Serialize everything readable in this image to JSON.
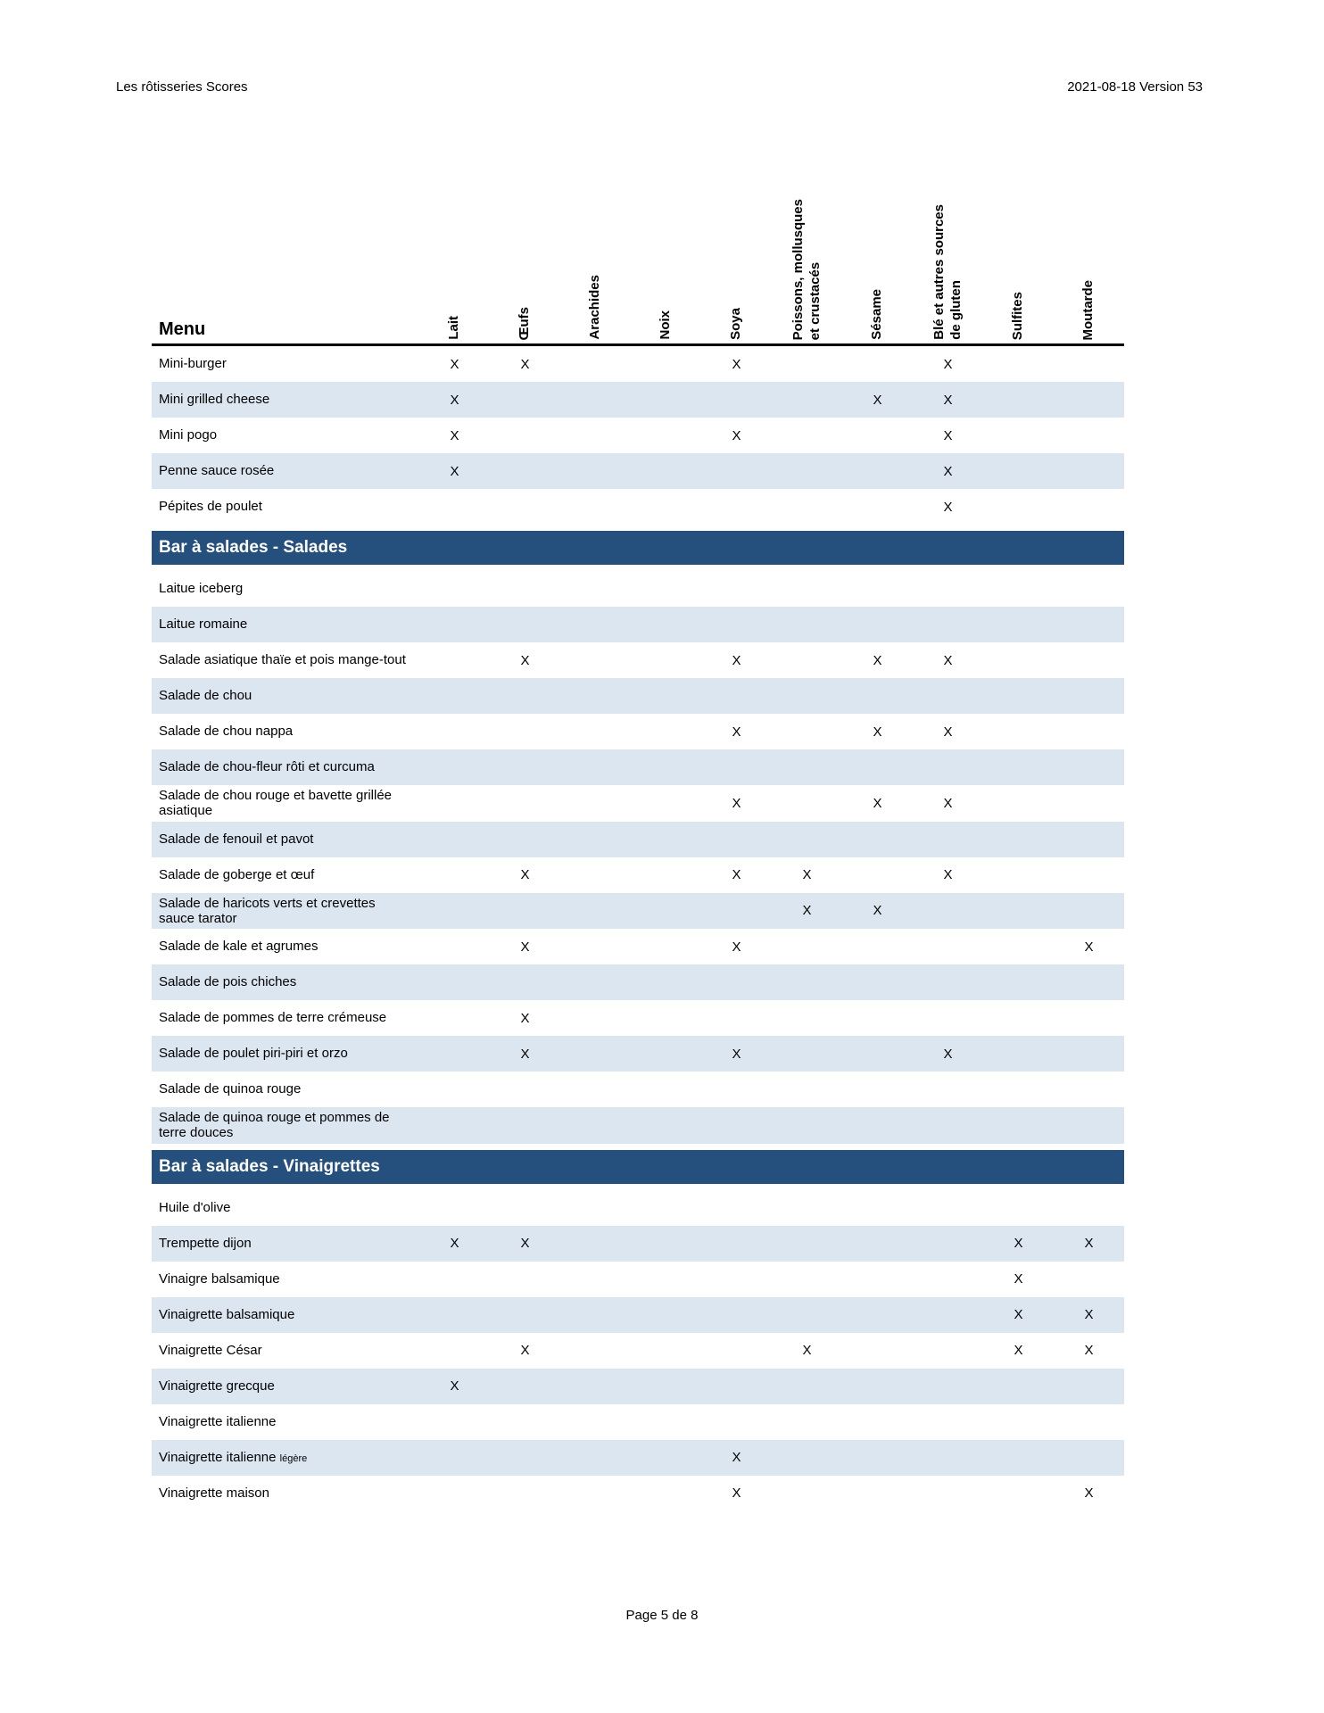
{
  "page_header": {
    "left": "Les rôtisseries Scores",
    "right": "2021-08-18 Version 53"
  },
  "table": {
    "menu_label": "Menu",
    "mark_symbol": "X",
    "columns": [
      "Lait",
      "Œufs",
      "Arachides",
      "Noix",
      "Soya",
      "Poissons, mollusques\net crustacés",
      "Sésame",
      "Blé et autres sources\nde gluten",
      "Sulfites",
      "Moutarde"
    ],
    "rows": [
      {
        "type": "item",
        "label": "Mini-burger",
        "marks": [
          0,
          1,
          4,
          7
        ]
      },
      {
        "type": "item",
        "label": "Mini grilled cheese",
        "marks": [
          0,
          6,
          7
        ]
      },
      {
        "type": "item",
        "label": "Mini pogo",
        "marks": [
          0,
          4,
          7
        ]
      },
      {
        "type": "item",
        "label": "Penne sauce rosée",
        "marks": [
          0,
          7
        ]
      },
      {
        "type": "item",
        "label": "Pépites de poulet",
        "marks": [
          7
        ]
      },
      {
        "type": "section",
        "label": "Bar à salades - Salades"
      },
      {
        "type": "item",
        "label": "Laitue iceberg",
        "marks": []
      },
      {
        "type": "item",
        "label": "Laitue romaine",
        "marks": []
      },
      {
        "type": "item",
        "label": "Salade asiatique thaïe et pois mange-tout",
        "marks": [
          1,
          4,
          6,
          7
        ]
      },
      {
        "type": "item",
        "label": "Salade de chou",
        "marks": []
      },
      {
        "type": "item",
        "label": "Salade de chou nappa",
        "marks": [
          4,
          6,
          7
        ]
      },
      {
        "type": "item",
        "label": "Salade de chou-fleur rôti et curcuma",
        "marks": []
      },
      {
        "type": "item",
        "label": "Salade de chou rouge et bavette grillée asiatique",
        "marks": [
          4,
          6,
          7
        ]
      },
      {
        "type": "item",
        "label": "Salade de fenouil et pavot",
        "marks": []
      },
      {
        "type": "item",
        "label": "Salade de goberge et œuf",
        "marks": [
          1,
          4,
          5,
          7
        ]
      },
      {
        "type": "item",
        "label": "Salade de haricots verts et crevettes sauce tarator",
        "marks": [
          5,
          6
        ]
      },
      {
        "type": "item",
        "label": "Salade de kale et agrumes",
        "marks": [
          1,
          4,
          9
        ]
      },
      {
        "type": "item",
        "label": "Salade de pois chiches",
        "marks": []
      },
      {
        "type": "item",
        "label": "Salade de pommes de terre crémeuse",
        "marks": [
          1
        ]
      },
      {
        "type": "item",
        "label": "Salade de poulet piri-piri et orzo",
        "marks": [
          1,
          4,
          7
        ]
      },
      {
        "type": "item",
        "label": "Salade de quinoa rouge",
        "marks": []
      },
      {
        "type": "item",
        "label": "Salade de quinoa rouge et pommes de terre douces",
        "marks": []
      },
      {
        "type": "section",
        "label": "Bar à salades - Vinaigrettes"
      },
      {
        "type": "item",
        "label": "Huile d'olive",
        "marks": []
      },
      {
        "type": "item",
        "label": "Trempette dijon",
        "marks": [
          0,
          1,
          8,
          9
        ]
      },
      {
        "type": "item",
        "label": "Vinaigre balsamique",
        "marks": [
          8
        ]
      },
      {
        "type": "item",
        "label": "Vinaigrette balsamique",
        "marks": [
          8,
          9
        ]
      },
      {
        "type": "item",
        "label": "Vinaigrette César",
        "marks": [
          1,
          5,
          8,
          9
        ]
      },
      {
        "type": "item",
        "label": "Vinaigrette grecque",
        "marks": [
          0
        ]
      },
      {
        "type": "item",
        "label": "Vinaigrette italienne",
        "marks": []
      },
      {
        "type": "item",
        "label": "Vinaigrette italienne ",
        "label_small": "légère",
        "marks": [
          4
        ]
      },
      {
        "type": "item",
        "label": "Vinaigrette maison",
        "marks": [
          4,
          9
        ]
      }
    ]
  },
  "footer": {
    "page": "Page 5 de 8"
  },
  "colors": {
    "section_bar_bg": "#25507d",
    "section_bar_text": "#ffffff",
    "stripe_bg": "#dce6f1",
    "text": "#000000"
  }
}
